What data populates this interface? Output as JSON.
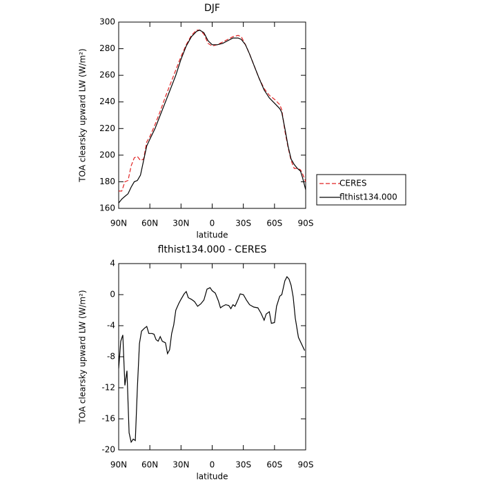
{
  "chart_data": [
    {
      "type": "line",
      "title": "DJF",
      "xlabel": "latitude",
      "ylabel": "TOA clearsky upward LW (W/m²)",
      "x": [
        90,
        87,
        84,
        81,
        78,
        75,
        72,
        69,
        66,
        63,
        60,
        55,
        50,
        45,
        40,
        35,
        30,
        25,
        20,
        15,
        12,
        8,
        4,
        0,
        -5,
        -10,
        -15,
        -20,
        -25,
        -28,
        -32,
        -36,
        -40,
        -45,
        -50,
        -55,
        -60,
        -65,
        -67,
        -70,
        -73,
        -76,
        -79,
        -82,
        -85,
        -87,
        -90
      ],
      "series": [
        {
          "name": "CERES",
          "color": "#e02020",
          "dash": true,
          "values": [
            173,
            173,
            180,
            181,
            192,
            198,
            199,
            196,
            197,
            210,
            214,
            223,
            233,
            244,
            254,
            264,
            274,
            283,
            290,
            294,
            294,
            291,
            284,
            282,
            283,
            285,
            287,
            289,
            290,
            289,
            283,
            276,
            268,
            258,
            250,
            245,
            242,
            238,
            234,
            218,
            206,
            196,
            190,
            190,
            189,
            186,
            180
          ]
        },
        {
          "name": "flthist134.000",
          "color": "#000000",
          "dash": false,
          "values": [
            164,
            167,
            169,
            171,
            176,
            180,
            181,
            185,
            196,
            207,
            212,
            220,
            230,
            240,
            250,
            260,
            272,
            282,
            289,
            293,
            294,
            292,
            286,
            283,
            283,
            284,
            286,
            288,
            288,
            287,
            283,
            276,
            268,
            258,
            249,
            243,
            239,
            235,
            232,
            220,
            207,
            197,
            193,
            190,
            188,
            183,
            174
          ]
        }
      ],
      "xlim": [
        90,
        -90
      ],
      "xticks": [
        {
          "value": 90,
          "label": "90N"
        },
        {
          "value": 60,
          "label": "60N"
        },
        {
          "value": 30,
          "label": "30N"
        },
        0,
        {
          "value": -30,
          "label": "30S"
        },
        {
          "value": -60,
          "label": "60S"
        },
        {
          "value": -90,
          "label": "90S"
        }
      ],
      "ylim": [
        160,
        300
      ],
      "yticks": [
        160,
        180,
        200,
        220,
        240,
        260,
        280,
        300
      ],
      "legend": "right"
    },
    {
      "type": "line",
      "title": "flthist134.000 - CERES",
      "xlabel": "latitude",
      "ylabel": "TOA clearsky upward LW (W/m²)",
      "x": [
        90,
        88,
        86,
        84,
        82,
        80,
        78,
        76,
        74,
        72,
        70,
        68,
        65,
        63,
        61,
        58,
        56,
        54,
        52,
        50,
        48,
        45,
        43,
        41,
        39,
        37,
        35,
        32,
        30,
        27,
        25,
        23,
        20,
        17,
        14,
        11,
        8,
        5,
        2,
        0,
        -3,
        -6,
        -8,
        -10,
        -13,
        -16,
        -18,
        -20,
        -22,
        -25,
        -27,
        -30,
        -33,
        -36,
        -40,
        -44,
        -47,
        -50,
        -52,
        -55,
        -57,
        -60,
        -62,
        -65,
        -67,
        -70,
        -72,
        -74,
        -76,
        -78,
        -80,
        -83,
        -89
      ],
      "series": [
        {
          "color": "#000000",
          "dash": false,
          "values": [
            -9.5,
            -6,
            -5.2,
            -11.7,
            -9.8,
            -17.8,
            -19,
            -18.6,
            -18.8,
            -12,
            -6.3,
            -4.7,
            -4.3,
            -4.1,
            -5,
            -5,
            -5.1,
            -5.8,
            -6,
            -5.4,
            -6,
            -6.2,
            -7.6,
            -7.1,
            -5,
            -3.9,
            -2,
            -1.1,
            -0.6,
            0.1,
            0.4,
            -0.4,
            -0.6,
            -0.9,
            -1.5,
            -1.2,
            -0.7,
            0.7,
            0.9,
            0.5,
            0.2,
            -0.8,
            -1.7,
            -1.5,
            -1.3,
            -1.4,
            -1.8,
            -1.3,
            -1.5,
            -0.6,
            0.1,
            0,
            -0.7,
            -1.3,
            -1.6,
            -1.7,
            -2.4,
            -3.3,
            -2.5,
            -2.2,
            -3.7,
            -3.6,
            -1.5,
            -0.2,
            0,
            1.8,
            2.3,
            2,
            1.2,
            -0.3,
            -3,
            -5.5,
            -7.2
          ]
        }
      ],
      "xlim": [
        90,
        -90
      ],
      "xticks": [
        {
          "value": 90,
          "label": "90N"
        },
        {
          "value": 60,
          "label": "60N"
        },
        {
          "value": 30,
          "label": "30N"
        },
        0,
        {
          "value": -30,
          "label": "30S"
        },
        {
          "value": -60,
          "label": "60S"
        },
        {
          "value": -90,
          "label": "90S"
        }
      ],
      "ylim": [
        -20,
        4
      ],
      "yticks": [
        -20,
        -16,
        -12,
        -8,
        -4,
        0,
        4
      ]
    }
  ]
}
